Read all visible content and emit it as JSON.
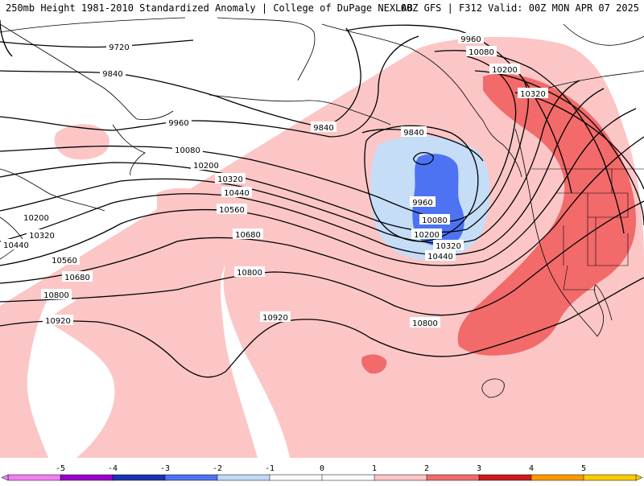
{
  "title": {
    "left": "250mb Height 1981-2010 Standardized Anomaly | College of DuPage NEXLAB",
    "right": "00Z GFS | F312 Valid: 00Z MON APR 07 2025"
  },
  "contour_labels": [
    "9720",
    "9840",
    "9960",
    "10080",
    "10200",
    "10320",
    "10440",
    "10560",
    "10680",
    "10800",
    "10920"
  ],
  "map_labels": [
    {
      "id": "l9720",
      "text": "9720"
    },
    {
      "id": "l9840a",
      "text": "9840"
    },
    {
      "id": "l9960a",
      "text": "9960"
    },
    {
      "id": "l9840b",
      "text": "9840"
    },
    {
      "id": "l9960b",
      "text": "9960"
    },
    {
      "id": "l9840c",
      "text": "9840"
    },
    {
      "id": "l10080a",
      "text": "10080"
    },
    {
      "id": "l10200a",
      "text": "10200"
    },
    {
      "id": "l10320a",
      "text": "10320"
    },
    {
      "id": "l10440a",
      "text": "10440"
    },
    {
      "id": "l10560a",
      "text": "10560"
    },
    {
      "id": "l10200b",
      "text": "10200"
    },
    {
      "id": "l10320b",
      "text": "10320"
    },
    {
      "id": "l10440b",
      "text": "10440"
    },
    {
      "id": "l10560b",
      "text": "10560"
    },
    {
      "id": "l10680a",
      "text": "10680"
    },
    {
      "id": "l10680b",
      "text": "10680"
    },
    {
      "id": "l10800a",
      "text": "10800"
    },
    {
      "id": "l10800b",
      "text": "10800"
    },
    {
      "id": "l10800c",
      "text": "10800"
    },
    {
      "id": "l10920a",
      "text": "10920"
    },
    {
      "id": "l10920b",
      "text": "10920"
    },
    {
      "id": "l9960c",
      "text": "9960"
    },
    {
      "id": "l10080b",
      "text": "10080"
    },
    {
      "id": "l10200c",
      "text": "10200"
    },
    {
      "id": "l10320c",
      "text": "10320"
    },
    {
      "id": "l10440c",
      "text": "10440"
    },
    {
      "id": "l10080c",
      "text": "10080"
    },
    {
      "id": "l10200d",
      "text": "10200"
    },
    {
      "id": "l10320d",
      "text": "10320"
    }
  ],
  "legend": {
    "ticks": [
      "-5",
      "-4",
      "-3",
      "-2",
      "-1",
      "0",
      "1",
      "2",
      "3",
      "4",
      "5"
    ],
    "colors": [
      "#f080f0",
      "#9900cc",
      "#1a33b3",
      "#4d73f2",
      "#bfd9f7",
      "#ffffff",
      "#ffffff",
      "#fcc6c6",
      "#f26a6a",
      "#cc1a1a",
      "#ff9900",
      "#ffcc00"
    ]
  },
  "anomaly_colors": {
    "neg1": "#c5ddf7",
    "neg2": "#4d73f2",
    "pos1": "#fcc6c6",
    "pos2": "#f26a6a"
  }
}
